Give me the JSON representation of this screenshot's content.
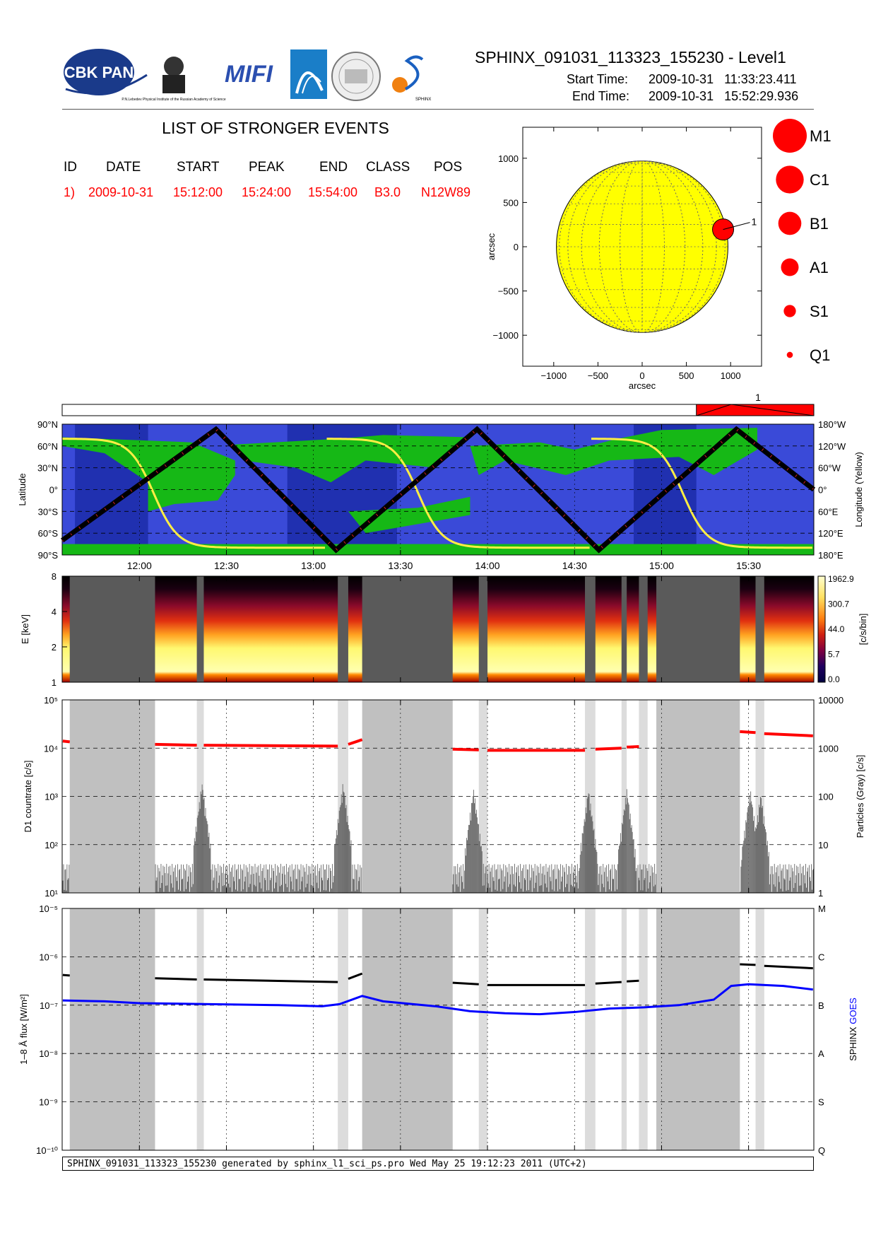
{
  "header": {
    "title": "SPHINX_091031_113323_155230 - Level1",
    "start_label": "Start Time:",
    "start_value": "2009-10-31   11:33:23.411",
    "end_label": "End Time:",
    "end_value": "2009-10-31   15:52:29.936",
    "logos": [
      "CBK PAN",
      "P.N.Lebedev Physical Institute of the Russian Academy of Science",
      "MIFI",
      "SPHINX"
    ]
  },
  "events": {
    "title": "LIST OF STRONGER EVENTS",
    "columns": [
      "ID",
      "DATE",
      "START",
      "PEAK",
      "END",
      "CLASS",
      "POS"
    ],
    "rows": [
      [
        "1)",
        "2009-10-31",
        "15:12:00",
        "15:24:00",
        "15:54:00",
        "B3.0",
        "N12W89"
      ]
    ]
  },
  "colors": {
    "event": "#ff0000",
    "sun": "#ffff00",
    "goes": "#0000ff",
    "sphinx": "#000000",
    "data_gap": "#c0c0c0",
    "orbit_bg": "#3a4ad8",
    "orbit_night": "#2030b0",
    "saa": "#16b816",
    "longitude_line": "#ffee44"
  },
  "chart_data": [
    {
      "type": "scatter",
      "id": "sun-map",
      "xlabel": "arcsec",
      "ylabel": "arcsec",
      "xlim": [
        -1350,
        1350
      ],
      "ylim": [
        -1350,
        1350
      ],
      "xticks": [
        -1000,
        -500,
        0,
        500,
        1000
      ],
      "yticks": [
        -1000,
        -500,
        0,
        500,
        1000
      ],
      "xtick_labels": [
        "−1000",
        "−500",
        "0",
        "500",
        "1000"
      ],
      "ytick_labels": [
        "−1000",
        "−500",
        "0",
        "500",
        "1000"
      ],
      "sun_radius": 970,
      "events": [
        {
          "label": "1",
          "x": 915,
          "y": 195,
          "class": "B3.0"
        }
      ],
      "legend": [
        {
          "label": "M1",
          "size": 1.0
        },
        {
          "label": "C1",
          "size": 0.82
        },
        {
          "label": "B1",
          "size": 0.68
        },
        {
          "label": "A1",
          "size": 0.52
        },
        {
          "label": "S1",
          "size": 0.36
        },
        {
          "label": "Q1",
          "size": 0.18
        }
      ]
    },
    {
      "type": "bar",
      "id": "event-bar",
      "x_range_hours": [
        11.5564,
        15.8749
      ],
      "events": [
        {
          "label": "1",
          "start": 15.2,
          "peak": 15.4,
          "end": 15.9
        }
      ]
    },
    {
      "type": "line",
      "id": "orbit",
      "ylabel": "Latitude",
      "y2label": "Longitude (Yellow)",
      "ylim": [
        -90,
        90
      ],
      "yticks": [
        90,
        60,
        30,
        0,
        -30,
        -60,
        -90
      ],
      "ytick_labels": [
        "90°N",
        "60°N",
        "30°N",
        "0°",
        "30°S",
        "60°S",
        "90°S"
      ],
      "y2tick_labels": [
        "180°W",
        "120°W",
        "60°W",
        "0°",
        "60°E",
        "120°E",
        "180°E"
      ],
      "latitude": {
        "x": [
          11.5564,
          12.44,
          13.13,
          13.94,
          14.64,
          15.43,
          15.8749
        ],
        "y": [
          -70,
          83,
          -83,
          83,
          -83,
          83,
          0
        ]
      },
      "night_bands": [
        [
          11.63,
          12.05
        ],
        [
          12.85,
          13.48
        ],
        [
          14.84,
          15.2
        ]
      ],
      "saa_bands": [
        [
          11.5564,
          12.4
        ],
        [
          12.4,
          13.8
        ],
        [
          13.8,
          15.8749
        ]
      ]
    },
    {
      "type": "heatmap",
      "id": "spectrogram",
      "ylabel": "E [keV]",
      "yticks": [
        1,
        2,
        4,
        8
      ],
      "ytick_labels": [
        "1",
        "2",
        "4",
        "8"
      ],
      "colorbar_label": "[c/s/bin]",
      "colorbar_ticks": [
        "1962.9",
        "300.7",
        "44.0",
        "5.7",
        "0.0"
      ],
      "gaps": [
        [
          11.6,
          12.09
        ],
        [
          12.33,
          12.37
        ],
        [
          13.14,
          13.2
        ],
        [
          13.28,
          13.8
        ],
        [
          13.95,
          14.0
        ],
        [
          14.56,
          14.62
        ],
        [
          14.77,
          14.8
        ],
        [
          14.87,
          14.92
        ],
        [
          14.97,
          15.45
        ],
        [
          15.54,
          15.59
        ]
      ]
    },
    {
      "type": "scatter",
      "id": "countrate",
      "ylabel": "D1 countrate [c/s]",
      "y2label": "Particles (Gray) [c/s]",
      "ylim": [
        10,
        100000
      ],
      "yticks": [
        10,
        100,
        1000,
        10000,
        100000
      ],
      "ytick_labels": [
        "10¹",
        "10²",
        "10³",
        "10⁴",
        "10⁵"
      ],
      "y2tick_labels": [
        "1",
        "10",
        "100",
        "1000",
        "10000"
      ],
      "red_segments": [
        {
          "x": [
            11.56,
            11.6
          ],
          "y": [
            14000,
            13500
          ]
        },
        {
          "x": [
            12.09,
            12.33
          ],
          "y": [
            12000,
            11500
          ]
        },
        {
          "x": [
            12.37,
            13.14
          ],
          "y": [
            11500,
            11000
          ]
        },
        {
          "x": [
            13.2,
            13.28
          ],
          "y": [
            12000,
            15000
          ]
        },
        {
          "x": [
            13.8,
            13.95
          ],
          "y": [
            9500,
            9200
          ]
        },
        {
          "x": [
            14.0,
            14.56
          ],
          "y": [
            9000,
            9000
          ]
        },
        {
          "x": [
            14.62,
            14.77
          ],
          "y": [
            9500,
            10000
          ]
        },
        {
          "x": [
            14.8,
            14.87
          ],
          "y": [
            10500,
            10800
          ]
        },
        {
          "x": [
            15.45,
            15.54
          ],
          "y": [
            22000,
            21000
          ]
        },
        {
          "x": [
            15.59,
            15.87
          ],
          "y": [
            20000,
            18000
          ]
        }
      ],
      "particle_peaks": [
        {
          "x": 12.36,
          "y": 2000
        },
        {
          "x": 13.17,
          "y": 2000
        },
        {
          "x": 13.92,
          "y": 1500
        },
        {
          "x": 14.58,
          "y": 1500
        },
        {
          "x": 14.8,
          "y": 1500
        },
        {
          "x": 15.51,
          "y": 1500
        },
        {
          "x": 15.57,
          "y": 1200
        }
      ]
    },
    {
      "type": "line",
      "id": "xray-flux",
      "ylabel": "1–8 Å flux [W/m²]",
      "y2label_parts": [
        "SPHINX",
        "GOES"
      ],
      "ylim_exp": [
        -10,
        -5
      ],
      "ytick_labels": [
        "10⁻¹⁰",
        "10⁻⁹",
        "10⁻⁸",
        "10⁻⁷",
        "10⁻⁶",
        "10⁻⁵"
      ],
      "y2tick_labels": [
        "Q",
        "S",
        "A",
        "B",
        "C",
        "M"
      ],
      "xticks": [
        12.0,
        12.5,
        13.0,
        13.5,
        14.0,
        14.5,
        15.0,
        15.5
      ],
      "xtick_labels": [
        "12:00",
        "12:30",
        "13:00",
        "13:30",
        "14:00",
        "14:30",
        "15:00",
        "15:30"
      ],
      "series": [
        {
          "name": "SPHINX",
          "segments": [
            {
              "x": [
                11.56,
                11.6
              ],
              "y": [
                4.2e-07,
                4.1e-07
              ]
            },
            {
              "x": [
                12.09,
                12.33
              ],
              "y": [
                3.6e-07,
                3.4e-07
              ]
            },
            {
              "x": [
                12.37,
                13.14
              ],
              "y": [
                3.4e-07,
                3e-07
              ]
            },
            {
              "x": [
                13.2,
                13.28
              ],
              "y": [
                3.5e-07,
                4.5e-07
              ]
            },
            {
              "x": [
                13.8,
                13.95
              ],
              "y": [
                2.9e-07,
                2.7e-07
              ]
            },
            {
              "x": [
                14.0,
                14.56
              ],
              "y": [
                2.6e-07,
                2.6e-07
              ]
            },
            {
              "x": [
                14.62,
                14.77
              ],
              "y": [
                2.8e-07,
                3e-07
              ]
            },
            {
              "x": [
                14.8,
                14.87
              ],
              "y": [
                3.1e-07,
                3.2e-07
              ]
            },
            {
              "x": [
                15.45,
                15.54
              ],
              "y": [
                7e-07,
                6.8e-07
              ]
            },
            {
              "x": [
                15.59,
                15.87
              ],
              "y": [
                6.5e-07,
                5.8e-07
              ]
            }
          ]
        },
        {
          "name": "GOES",
          "segments": [
            {
              "x": [
                11.56,
                11.8,
                12.0,
                12.4,
                12.8,
                13.05,
                13.15,
                13.28,
                13.4,
                13.7,
                13.9,
                14.1,
                14.3,
                14.5,
                14.7,
                14.9,
                15.1,
                15.3,
                15.4,
                15.5,
                15.7,
                15.87
              ],
              "y": [
                1.25e-07,
                1.2e-07,
                1.1e-07,
                1.05e-07,
                1e-07,
                9.5e-08,
                1.05e-07,
                1.55e-07,
                1.2e-07,
                9.5e-08,
                7.5e-08,
                6.8e-08,
                6.5e-08,
                7.2e-08,
                8.5e-08,
                9e-08,
                1e-07,
                1.3e-07,
                2.5e-07,
                2.7e-07,
                2.5e-07,
                2.1e-07
              ]
            }
          ]
        }
      ]
    }
  ],
  "footer": "SPHINX_091031_113323_155230 generated by sphinx_l1_sci_ps.pro Wed May 25 19:12:23 2011 (UTC+2)"
}
